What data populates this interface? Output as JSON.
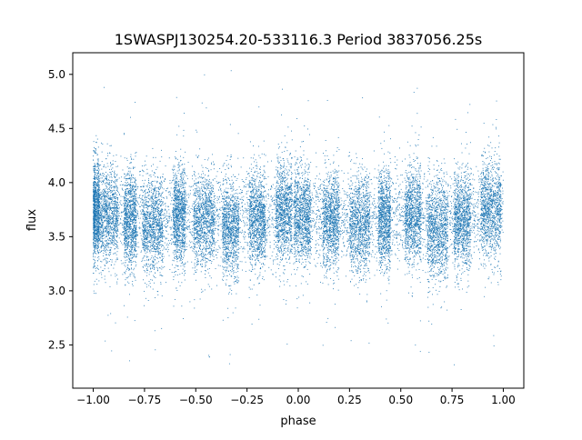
{
  "chart_data": {
    "type": "scatter",
    "title": "1SWASPJ130254.20-533116.3 Period 3837056.25s",
    "xlabel": "phase",
    "ylabel": "flux",
    "xlim": [
      -1.1,
      1.1
    ],
    "ylim": [
      2.1,
      5.2
    ],
    "xticks": [
      -1.0,
      -0.75,
      -0.5,
      -0.25,
      0.0,
      0.25,
      0.5,
      0.75,
      1.0
    ],
    "xtick_labels": [
      "−1.00",
      "−0.75",
      "−0.50",
      "−0.25",
      "0.00",
      "0.25",
      "0.50",
      "0.75",
      "1.00"
    ],
    "yticks": [
      2.5,
      3.0,
      3.5,
      4.0,
      4.5,
      5.0
    ],
    "ytick_labels": [
      "2.5",
      "3.0",
      "3.5",
      "4.0",
      "4.5",
      "5.0"
    ],
    "grid": false,
    "marker_color": "#1f77b4",
    "phase_range": [
      -1.0,
      1.0
    ],
    "flux_center": 3.68,
    "flux_spread": 0.22,
    "flux_outlier_range": [
      2.25,
      5.05
    ],
    "clusters": [
      {
        "center": -0.99,
        "width": 0.02,
        "level": 3.75
      },
      {
        "center": -0.93,
        "width": 0.05,
        "level": 3.7
      },
      {
        "center": -0.82,
        "width": 0.03,
        "level": 3.65
      },
      {
        "center": -0.71,
        "width": 0.05,
        "level": 3.6
      },
      {
        "center": -0.58,
        "width": 0.03,
        "level": 3.7
      },
      {
        "center": -0.46,
        "width": 0.05,
        "level": 3.65
      },
      {
        "center": -0.33,
        "width": 0.04,
        "level": 3.55
      },
      {
        "center": -0.2,
        "width": 0.04,
        "level": 3.65
      },
      {
        "center": -0.07,
        "width": 0.04,
        "level": 3.75
      },
      {
        "center": 0.02,
        "width": 0.04,
        "level": 3.7
      },
      {
        "center": 0.16,
        "width": 0.04,
        "level": 3.65
      },
      {
        "center": 0.3,
        "width": 0.05,
        "level": 3.6
      },
      {
        "center": 0.42,
        "width": 0.03,
        "level": 3.65
      },
      {
        "center": 0.56,
        "width": 0.04,
        "level": 3.7
      },
      {
        "center": 0.68,
        "width": 0.05,
        "level": 3.55
      },
      {
        "center": 0.8,
        "width": 0.04,
        "level": 3.65
      },
      {
        "center": 0.94,
        "width": 0.05,
        "level": 3.75
      }
    ]
  }
}
